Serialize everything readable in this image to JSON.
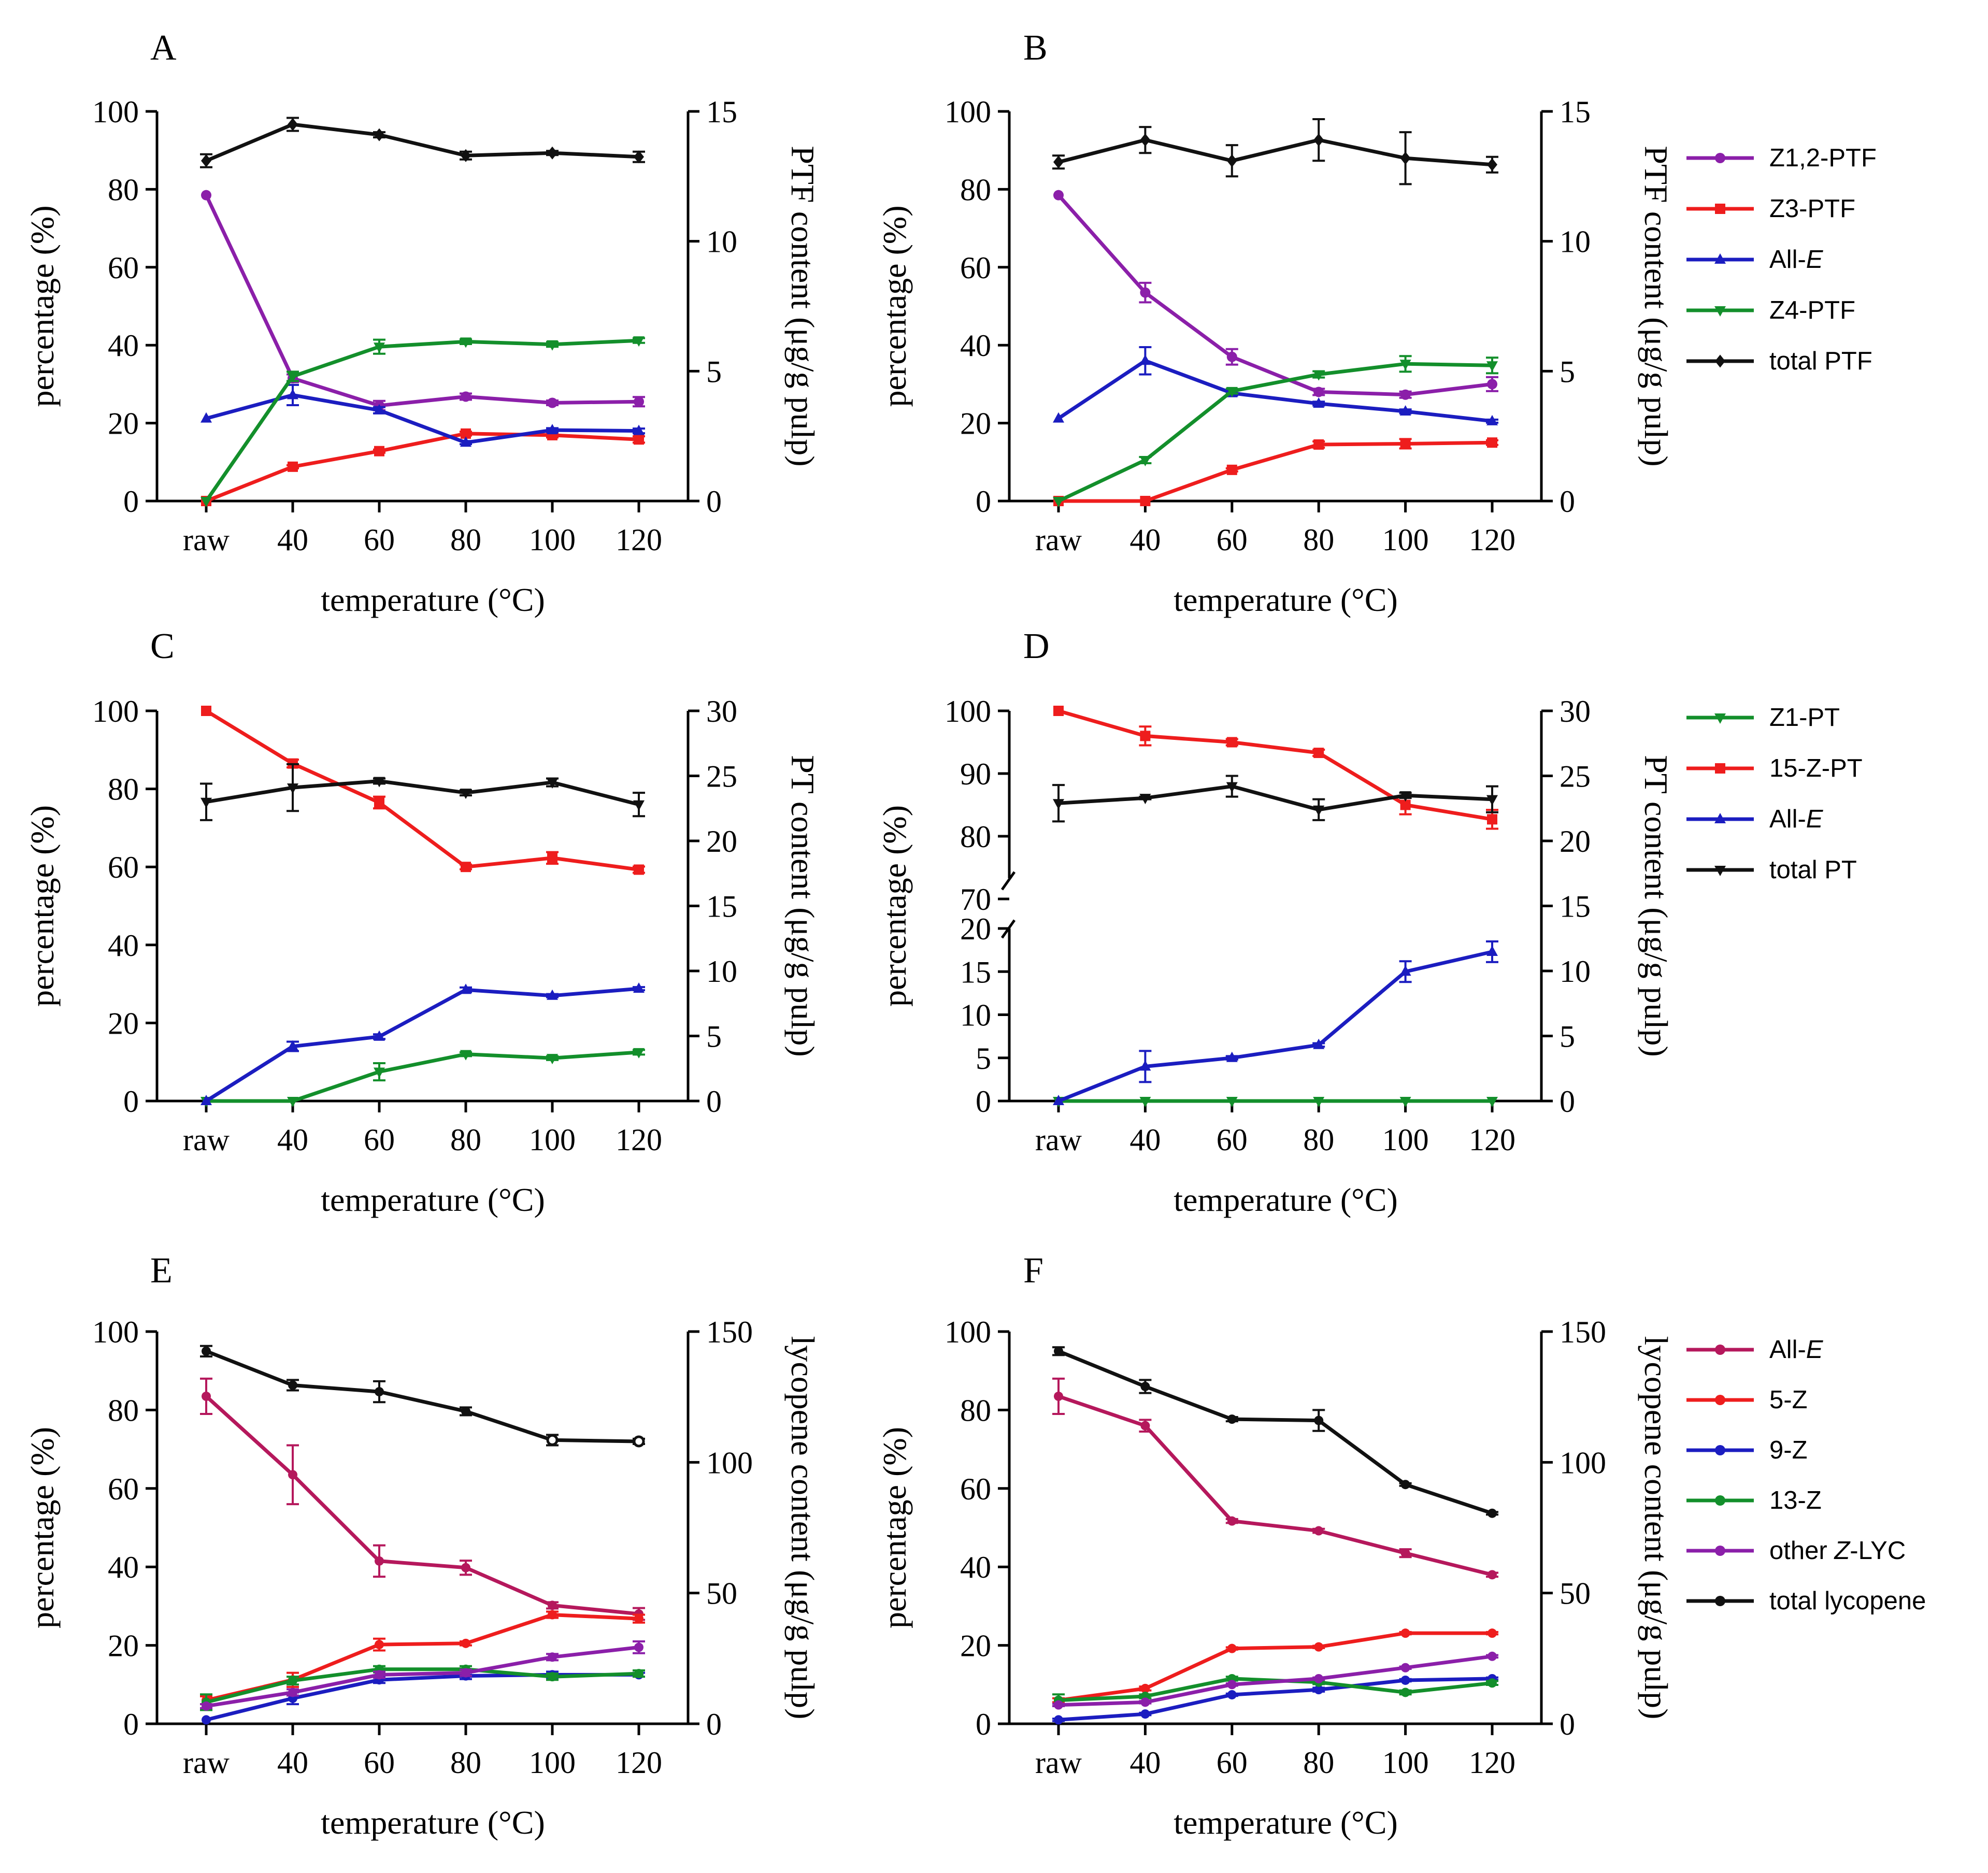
{
  "figure": {
    "series_colors": {
      "purple": "#8b1fa9",
      "red": "#ee1d1d",
      "blue": "#1b1dc0",
      "green": "#138f2b",
      "black": "#111111",
      "crimson": "#b5185c"
    }
  },
  "chart_data": [
    {
      "panel": "A",
      "type": "line",
      "categories": [
        "raw",
        "40",
        "60",
        "80",
        "100",
        "120"
      ],
      "xlabel": "temperature  (°C)",
      "ylabel": "percentage (%)",
      "ylim": [
        0,
        100
      ],
      "yticks": [
        0,
        20,
        40,
        60,
        80,
        100
      ],
      "y2label": "PTF content (μg/g pulp)",
      "y2lim": [
        0,
        15
      ],
      "y2ticks": [
        0,
        5,
        10,
        15
      ],
      "series": [
        {
          "name": "Z1,2-PTF",
          "color": "#8b1fa9",
          "axis": "left",
          "values": [
            78.5,
            31.5,
            24.5,
            26.8,
            25.2,
            25.5
          ],
          "errors": [
            0,
            1,
            1.2,
            0.8,
            0.6,
            1.2
          ]
        },
        {
          "name": "Z3-PTF",
          "color": "#ee1d1d",
          "axis": "left",
          "values": [
            0,
            8.8,
            12.8,
            17.3,
            16.9,
            15.8
          ],
          "errors": [
            0,
            0.4,
            0.4,
            0.5,
            0.6,
            0.8
          ]
        },
        {
          "name": "All-E",
          "color": "#1b1dc0",
          "axis": "left",
          "values": [
            21.2,
            27.2,
            23.3,
            15,
            18.2,
            18
          ],
          "errors": [
            0,
            2.6,
            0.8,
            0.4,
            0.5,
            0.6
          ]
        },
        {
          "name": "Z4-PTF",
          "color": "#138f2b",
          "axis": "left",
          "values": [
            0,
            32,
            39.6,
            40.9,
            40.2,
            41.2
          ],
          "errors": [
            0,
            1.2,
            1.8,
            0.6,
            0.6,
            0.6
          ]
        },
        {
          "name": "total PTF",
          "color": "#111111",
          "axis": "right",
          "values": [
            13.1,
            14.5,
            14.1,
            13.3,
            13.4,
            13.25
          ],
          "errors": [
            0.25,
            0.25,
            0.1,
            0.15,
            0.08,
            0.2
          ]
        }
      ]
    },
    {
      "panel": "B",
      "type": "line",
      "categories": [
        "raw",
        "40",
        "60",
        "80",
        "100",
        "120"
      ],
      "xlabel": "temperature  (°C)",
      "ylabel": "percentage (%)",
      "ylim": [
        0,
        100
      ],
      "yticks": [
        0,
        20,
        40,
        60,
        80,
        100
      ],
      "y2label": "PTF content (μg/g pulp)",
      "y2lim": [
        0,
        15
      ],
      "y2ticks": [
        0,
        5,
        10,
        15
      ],
      "series": [
        {
          "name": "Z1,2-PTF",
          "color": "#8b1fa9",
          "axis": "left",
          "values": [
            78.5,
            53.5,
            37,
            28,
            27.3,
            30
          ],
          "errors": [
            0,
            2.5,
            2,
            0.8,
            0.8,
            1.8
          ]
        },
        {
          "name": "Z3-PTF",
          "color": "#ee1d1d",
          "axis": "left",
          "values": [
            0,
            0,
            8,
            14.5,
            14.7,
            15
          ],
          "errors": [
            0,
            0,
            0.4,
            0.8,
            1.2,
            0.6
          ]
        },
        {
          "name": "All-E",
          "color": "#1b1dc0",
          "axis": "left",
          "values": [
            21.2,
            36,
            27.7,
            25,
            23,
            20.5
          ],
          "errors": [
            0,
            3.5,
            0.6,
            0.5,
            0.5,
            0.4
          ]
        },
        {
          "name": "Z4-PTF",
          "color": "#138f2b",
          "axis": "left",
          "values": [
            0,
            10.5,
            28.2,
            32.5,
            35.2,
            34.8
          ],
          "errors": [
            0,
            0.8,
            0.6,
            0.8,
            2,
            2
          ]
        },
        {
          "name": "total PTF",
          "color": "#111111",
          "axis": "right",
          "values": [
            13.05,
            13.9,
            13.1,
            13.9,
            13.2,
            12.95
          ],
          "errors": [
            0.25,
            0.5,
            0.6,
            0.8,
            1,
            0.3
          ]
        }
      ]
    },
    {
      "panel": "C",
      "type": "line",
      "categories": [
        "raw",
        "40",
        "60",
        "80",
        "100",
        "120"
      ],
      "xlabel": "temperature  (°C)",
      "ylabel": "percentage (%)",
      "ylim": [
        0,
        100
      ],
      "yticks": [
        0,
        20,
        40,
        60,
        80,
        100
      ],
      "y2label": "PT content (μg/g pulp)",
      "y2lim": [
        0,
        30
      ],
      "y2ticks": [
        0,
        5,
        10,
        15,
        20,
        25,
        30
      ],
      "series": [
        {
          "name": "Z1-PT",
          "color": "#138f2b",
          "axis": "left",
          "values": [
            0,
            0,
            7.5,
            12,
            11,
            12.5
          ],
          "errors": [
            0,
            0,
            2.2,
            0.5,
            0.5,
            0.6
          ]
        },
        {
          "name": "15-Z-PT",
          "color": "#ee1d1d",
          "axis": "left",
          "values": [
            100,
            86.5,
            76.5,
            60,
            62.3,
            59.3
          ],
          "errors": [
            0,
            1,
            1.5,
            0.6,
            1.5,
            0.8
          ]
        },
        {
          "name": "All-E",
          "color": "#1b1dc0",
          "axis": "left",
          "values": [
            0,
            14,
            16.5,
            28.5,
            27,
            28.8
          ],
          "errors": [
            0,
            1.2,
            0.6,
            0.6,
            0.4,
            0.4
          ]
        },
        {
          "name": "total PT",
          "color": "#111111",
          "axis": "right",
          "values": [
            23,
            24.1,
            24.6,
            23.7,
            24.5,
            22.8
          ],
          "errors": [
            1.4,
            1.8,
            0.2,
            0.2,
            0.3,
            0.9
          ]
        }
      ]
    },
    {
      "panel": "D",
      "type": "line",
      "categories": [
        "raw",
        "40",
        "60",
        "80",
        "100",
        "120"
      ],
      "xlabel": "temperature  (°C)",
      "ylabel": "percentage (%)",
      "broken_axis": true,
      "ylim_lower": [
        0,
        20
      ],
      "yticks_lower": [
        0,
        5,
        10,
        15,
        20
      ],
      "ylim_upper": [
        70,
        100
      ],
      "yticks_upper": [
        70,
        80,
        90,
        100
      ],
      "y2label": "PT content (μg/g pulp)",
      "y2lim": [
        0,
        30
      ],
      "y2ticks": [
        0,
        5,
        10,
        15,
        20,
        25,
        30
      ],
      "series": [
        {
          "name": "Z1-PT",
          "color": "#138f2b",
          "axis": "left",
          "values": [
            0,
            0,
            0,
            0,
            0,
            0
          ],
          "errors": [
            0,
            0,
            0,
            0,
            0,
            0
          ]
        },
        {
          "name": "15-Z-PT",
          "color": "#ee1d1d",
          "axis": "left",
          "values": [
            100,
            96,
            95,
            93.3,
            85,
            82.7
          ],
          "errors": [
            0,
            1.5,
            0.5,
            0.5,
            1.5,
            1.5
          ]
        },
        {
          "name": "All-E",
          "color": "#1b1dc0",
          "axis": "left",
          "values": [
            0,
            4,
            5,
            6.5,
            15,
            17.3
          ],
          "errors": [
            0,
            1.8,
            0.2,
            0.2,
            1.2,
            1.2
          ]
        },
        {
          "name": "total PT",
          "color": "#111111",
          "axis": "right",
          "values": [
            22.9,
            23.3,
            24.2,
            22.4,
            23.5,
            23.2
          ],
          "errors": [
            1.4,
            0.1,
            0.8,
            0.8,
            0.2,
            1
          ]
        }
      ]
    },
    {
      "panel": "E",
      "type": "line",
      "categories": [
        "raw",
        "40",
        "60",
        "80",
        "100",
        "120"
      ],
      "xlabel": "temperature  (°C)",
      "ylabel": "percentage (%)",
      "ylim": [
        0,
        100
      ],
      "yticks": [
        0,
        20,
        40,
        60,
        80,
        100
      ],
      "y2label": "lycopene content (μg/g pulp)",
      "y2lim": [
        0,
        150
      ],
      "y2ticks": [
        0,
        50,
        100,
        150
      ],
      "series": [
        {
          "name": "All-E",
          "color": "#b5185c",
          "axis": "left",
          "values": [
            83.5,
            63.5,
            41.5,
            39.8,
            30.2,
            28
          ],
          "errors": [
            4.5,
            7.5,
            4,
            1.8,
            0.8,
            1.5
          ]
        },
        {
          "name": "5-Z",
          "color": "#ee1d1d",
          "axis": "left",
          "values": [
            6,
            11.2,
            20.2,
            20.5,
            27.8,
            26.8
          ],
          "errors": [
            1,
            1.8,
            1.5,
            0.5,
            0.8,
            1
          ]
        },
        {
          "name": "9-Z",
          "color": "#1b1dc0",
          "axis": "left",
          "values": [
            1,
            6.5,
            11.2,
            12.2,
            12.5,
            12.5
          ],
          "errors": [
            0,
            1.5,
            0.8,
            0.8,
            0.8,
            0.5
          ]
        },
        {
          "name": "13-Z",
          "color": "#138f2b",
          "axis": "left",
          "values": [
            5.5,
            11,
            13.9,
            13.9,
            12,
            12.8
          ],
          "errors": [
            2,
            1,
            0.8,
            0.8,
            0.8,
            0.8
          ]
        },
        {
          "name": "other Z-LYC",
          "color": "#8b1fa9",
          "axis": "left",
          "values": [
            4.5,
            8,
            12.5,
            13,
            17,
            19.5
          ],
          "errors": [
            0.5,
            0.8,
            0.8,
            0.8,
            0.8,
            1.5
          ]
        },
        {
          "name": "total lycopene",
          "color": "#111111",
          "axis": "right",
          "values": [
            142.5,
            129.5,
            127,
            119.5,
            108.5,
            108
          ],
          "errors": [
            2,
            2,
            4,
            1.5,
            2,
            1
          ]
        }
      ]
    },
    {
      "panel": "F",
      "type": "line",
      "categories": [
        "raw",
        "40",
        "60",
        "80",
        "100",
        "120"
      ],
      "xlabel": "temperature  (°C)",
      "ylabel": "percentage (%)",
      "ylim": [
        0,
        100
      ],
      "yticks": [
        0,
        20,
        40,
        60,
        80,
        100
      ],
      "y2label": "lycopene content (μg/g pulp)",
      "y2lim": [
        0,
        150
      ],
      "y2ticks": [
        0,
        50,
        100,
        150
      ],
      "series": [
        {
          "name": "All-E",
          "color": "#b5185c",
          "axis": "left",
          "values": [
            83.5,
            76,
            51.7,
            49.2,
            43.5,
            38
          ],
          "errors": [
            4.5,
            1.5,
            0.5,
            0.5,
            1,
            0.5
          ]
        },
        {
          "name": "5-Z",
          "color": "#ee1d1d",
          "axis": "left",
          "values": [
            6,
            9,
            19.2,
            19.6,
            23.1,
            23.1
          ],
          "errors": [
            0.5,
            0.5,
            0.3,
            0.3,
            0.3,
            0.3
          ]
        },
        {
          "name": "9-Z",
          "color": "#1b1dc0",
          "axis": "left",
          "values": [
            1,
            2.5,
            7.4,
            8.7,
            11.1,
            11.5
          ],
          "errors": [
            0.3,
            0.3,
            0.3,
            0.5,
            0.3,
            0.3
          ]
        },
        {
          "name": "13-Z",
          "color": "#138f2b",
          "axis": "left",
          "values": [
            6,
            7,
            11.5,
            10.6,
            8,
            10.4
          ],
          "errors": [
            1.5,
            0.5,
            0.5,
            0.5,
            0.5,
            0.5
          ]
        },
        {
          "name": "other Z-LYC",
          "color": "#8b1fa9",
          "axis": "left",
          "values": [
            4.8,
            5.5,
            10,
            11.5,
            14.3,
            17.2
          ],
          "errors": [
            0.3,
            0.3,
            0.3,
            0.3,
            0.3,
            0.3
          ]
        },
        {
          "name": "total lycopene",
          "color": "#111111",
          "axis": "right",
          "values": [
            142.5,
            129,
            116.5,
            116,
            91.5,
            80.5
          ],
          "errors": [
            1.5,
            2.5,
            0.8,
            4,
            0.5,
            0.5
          ]
        }
      ]
    }
  ],
  "legends": [
    {
      "id": "ptf",
      "items": [
        {
          "pre": "Z1,2-PTF",
          "it": "",
          "post": "",
          "color": "#8b1fa9",
          "marker": "circle"
        },
        {
          "pre": "Z3-PTF",
          "it": "",
          "post": "",
          "color": "#ee1d1d",
          "marker": "square"
        },
        {
          "pre": "All-",
          "it": "E",
          "post": "",
          "color": "#1b1dc0",
          "marker": "triangle-up"
        },
        {
          "pre": "Z4-PTF",
          "it": "",
          "post": "",
          "color": "#138f2b",
          "marker": "triangle-down"
        },
        {
          "pre": "total PTF",
          "it": "",
          "post": "",
          "color": "#111111",
          "marker": "diamond"
        }
      ]
    },
    {
      "id": "pt",
      "items": [
        {
          "pre": "Z1-PT",
          "it": "",
          "post": "",
          "color": "#138f2b",
          "marker": "triangle-down"
        },
        {
          "pre": "15-Z-PT",
          "it": "",
          "post": "",
          "color": "#ee1d1d",
          "marker": "square"
        },
        {
          "pre": "All-",
          "it": "E",
          "post": "",
          "color": "#1b1dc0",
          "marker": "triangle-up"
        },
        {
          "pre": "total PT",
          "it": "",
          "post": "",
          "color": "#111111",
          "marker": "triangle-down"
        }
      ]
    },
    {
      "id": "lycopene",
      "items": [
        {
          "pre": "All-",
          "it": "E",
          "post": "",
          "color": "#b5185c",
          "marker": "circle"
        },
        {
          "pre": "5-Z",
          "it": "",
          "post": "",
          "color": "#ee1d1d",
          "marker": "circle"
        },
        {
          "pre": "9-Z",
          "it": "",
          "post": "",
          "color": "#1b1dc0",
          "marker": "circle"
        },
        {
          "pre": "13-Z",
          "it": "",
          "post": "",
          "color": "#138f2b",
          "marker": "circle"
        },
        {
          "pre": "other ",
          "it": "Z",
          "post": "-LYC",
          "color": "#8b1fa9",
          "marker": "circle"
        },
        {
          "pre": "total lycopene",
          "it": "",
          "post": "",
          "color": "#111111",
          "marker": "circle"
        }
      ]
    }
  ]
}
